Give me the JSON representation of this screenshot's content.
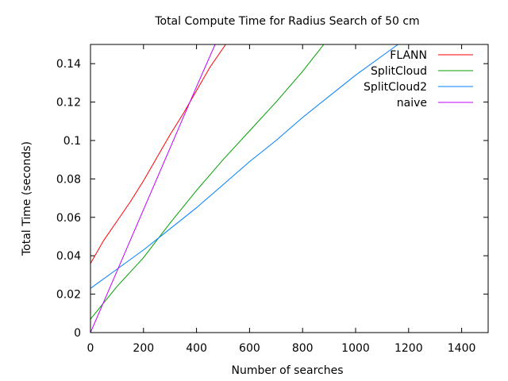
{
  "chart_data": {
    "type": "line",
    "title": "Total Compute Time for Radius Search of 50 cm",
    "xlabel": "Number of searches",
    "ylabel": "Total Time (seconds)",
    "xlim": [
      0,
      1500
    ],
    "ylim": [
      0,
      0.15
    ],
    "xticks": [
      0,
      200,
      400,
      600,
      800,
      1000,
      1200,
      1400
    ],
    "yticks": [
      0,
      0.02,
      0.04,
      0.06,
      0.08,
      0.1,
      0.12,
      0.14
    ],
    "grid": false,
    "legend": "top-right",
    "series": [
      {
        "name": "FLANN",
        "color": "#ff0000",
        "points": [
          [
            0,
            0.036
          ],
          [
            50,
            0.048
          ],
          [
            100,
            0.058
          ],
          [
            150,
            0.068
          ],
          [
            200,
            0.079
          ],
          [
            250,
            0.091
          ],
          [
            300,
            0.103
          ],
          [
            350,
            0.114
          ],
          [
            400,
            0.126
          ],
          [
            450,
            0.138
          ],
          [
            510,
            0.15
          ]
        ]
      },
      {
        "name": "SplitCloud",
        "color": "#00a000",
        "points": [
          [
            0,
            0.007
          ],
          [
            100,
            0.024
          ],
          [
            200,
            0.039
          ],
          [
            300,
            0.057
          ],
          [
            400,
            0.074
          ],
          [
            500,
            0.09
          ],
          [
            600,
            0.105
          ],
          [
            700,
            0.12
          ],
          [
            800,
            0.136
          ],
          [
            880,
            0.15
          ]
        ]
      },
      {
        "name": "SplitCloud2",
        "color": "#0080ff",
        "points": [
          [
            0,
            0.023
          ],
          [
            100,
            0.033
          ],
          [
            200,
            0.043
          ],
          [
            300,
            0.054
          ],
          [
            400,
            0.065
          ],
          [
            500,
            0.077
          ],
          [
            600,
            0.089
          ],
          [
            700,
            0.1
          ],
          [
            800,
            0.112
          ],
          [
            900,
            0.123
          ],
          [
            1000,
            0.134
          ],
          [
            1100,
            0.144
          ],
          [
            1160,
            0.15
          ]
        ]
      },
      {
        "name": "naive",
        "color": "#c000ff",
        "points": [
          [
            0,
            0.0
          ],
          [
            50,
            0.016
          ],
          [
            100,
            0.032
          ],
          [
            200,
            0.064
          ],
          [
            300,
            0.096
          ],
          [
            400,
            0.128
          ],
          [
            470,
            0.15
          ]
        ]
      }
    ]
  }
}
